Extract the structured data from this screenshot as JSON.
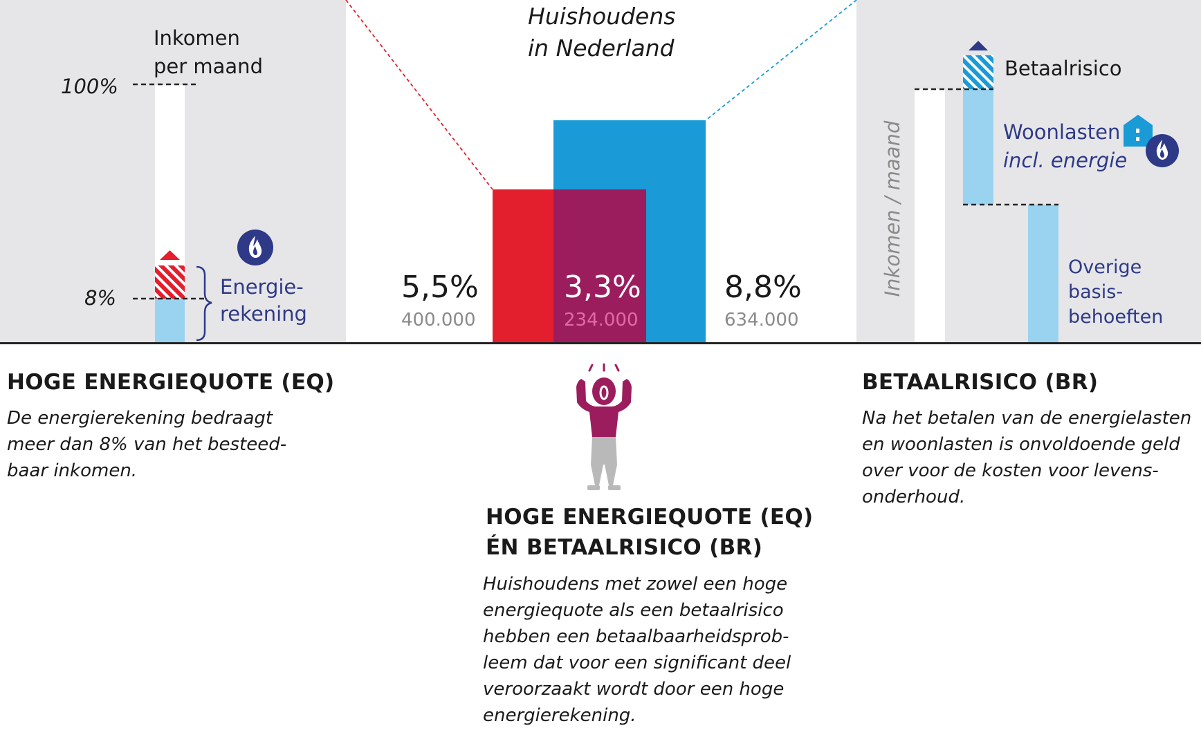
{
  "left": {
    "axis_title_line1": "Inkomen",
    "axis_title_line2": "per maand",
    "label_100": "100%",
    "label_8": "8%",
    "bracket_label_line1": "Energie-",
    "bracket_label_line2": "rekening",
    "heading": "HOGE ENERGIEQUOTE (EQ)",
    "description": [
      "De energierekening bedraagt",
      "meer dan 8% van het besteed-",
      "baar inkomen."
    ]
  },
  "center": {
    "title_line1": "Huishoudens",
    "title_line2": "in Nederland",
    "eq_only": {
      "percent": "5,5%",
      "count": "400.000"
    },
    "both": {
      "percent": "3,3%",
      "count": "234.000"
    },
    "br_only": {
      "percent": "8,8%",
      "count": "634.000"
    },
    "heading_line1": "HOGE ENERGIEQUOTE (EQ)",
    "heading_line2": "ÉN BETAALRISICO (BR)",
    "description": [
      "Huishoudens met zowel een hoge",
      "energiequote  als een betaalrisico",
      "hebben een betaalbaarheidsprob-",
      "leem dat voor een significant deel",
      "veroorzaakt wordt door een hoge",
      "energierekening."
    ]
  },
  "right": {
    "vertical_label": "Inkomen / maand",
    "betaalrisico_label": "Betaalrisico",
    "woonlasten_line1": "Woonlasten",
    "woonlasten_line2": "incl. energie",
    "overige_line1": "Overige",
    "overige_line2": "basis-",
    "overige_line3": "behoeften",
    "heading": "BETAALRISICO (BR)",
    "description": [
      "Na het betalen van de energielasten",
      "en woonlasten is onvoldoende geld",
      "over voor de kosten voor levens-",
      "onderhoud."
    ]
  },
  "colors": {
    "panel_grey": "#e6e6e8",
    "red": "#e31e2d",
    "blue": "#1a9ad6",
    "overlap": "#9b1d5e",
    "light_blue": "#99d3f0",
    "navy": "#2e3a87"
  },
  "icons": [
    "flame-icon",
    "house-icon",
    "person-icon"
  ]
}
